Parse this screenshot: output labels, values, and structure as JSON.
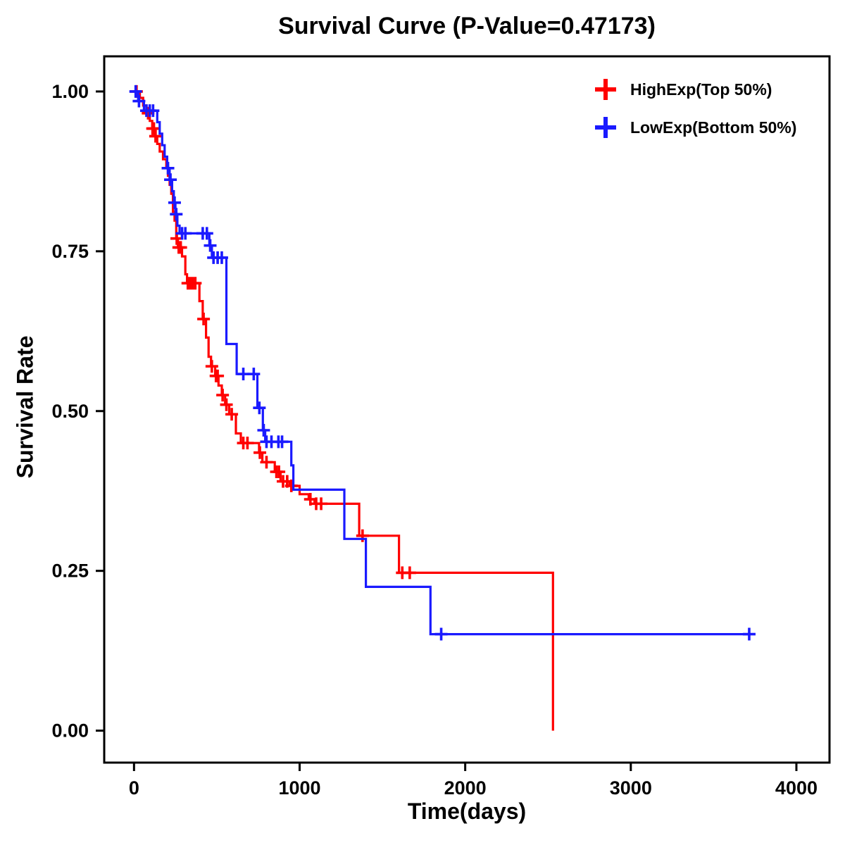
{
  "chart": {
    "title": "Survival Curve (P-Value=0.47173)",
    "xlabel": "Time(days)",
    "ylabel": "Survival Rate"
  },
  "chart_data": {
    "type": "line",
    "subtype": "kaplan-meier-step-survival",
    "title": "Survival Curve (P-Value=0.47173)",
    "p_value": 0.47173,
    "xlabel": "Time(days)",
    "ylabel": "Survival Rate",
    "xlim": [
      -180,
      4200
    ],
    "ylim": [
      -0.05,
      1.055
    ],
    "xticks": [
      0,
      1000,
      2000,
      3000,
      4000
    ],
    "xtick_labels": [
      "0",
      "1000",
      "2000",
      "3000",
      "4000"
    ],
    "yticks": [
      0.0,
      0.25,
      0.5,
      0.75,
      1.0
    ],
    "ytick_labels": [
      "0.00",
      "0.25",
      "0.50",
      "0.75",
      "1.00"
    ],
    "grid": false,
    "legend_position": "top-right-inside",
    "series": [
      {
        "name": "HighExp(Top 50%)",
        "color": "#FF0000",
        "steps": [
          [
            0,
            1.0
          ],
          [
            35,
            0.99
          ],
          [
            55,
            0.978
          ],
          [
            75,
            0.966
          ],
          [
            95,
            0.954
          ],
          [
            110,
            0.942
          ],
          [
            125,
            0.93
          ],
          [
            140,
            0.918
          ],
          [
            155,
            0.906
          ],
          [
            175,
            0.894
          ],
          [
            195,
            0.882
          ],
          [
            205,
            0.868
          ],
          [
            215,
            0.854
          ],
          [
            225,
            0.84
          ],
          [
            235,
            0.812
          ],
          [
            245,
            0.798
          ],
          [
            255,
            0.77
          ],
          [
            265,
            0.756
          ],
          [
            290,
            0.742
          ],
          [
            310,
            0.714
          ],
          [
            320,
            0.7
          ],
          [
            395,
            0.672
          ],
          [
            415,
            0.644
          ],
          [
            435,
            0.615
          ],
          [
            450,
            0.585
          ],
          [
            465,
            0.57
          ],
          [
            490,
            0.555
          ],
          [
            510,
            0.54
          ],
          [
            530,
            0.525
          ],
          [
            550,
            0.51
          ],
          [
            575,
            0.495
          ],
          [
            615,
            0.465
          ],
          [
            645,
            0.45
          ],
          [
            755,
            0.435
          ],
          [
            775,
            0.42
          ],
          [
            850,
            0.405
          ],
          [
            885,
            0.39
          ],
          [
            940,
            0.383
          ],
          [
            1000,
            0.37
          ],
          [
            1055,
            0.362
          ],
          [
            1090,
            0.355
          ],
          [
            1360,
            0.305
          ],
          [
            1600,
            0.247
          ],
          [
            2530,
            0.0
          ]
        ],
        "censor_marks": [
          [
            15,
            1.0
          ],
          [
            85,
            0.966
          ],
          [
            112,
            0.942
          ],
          [
            120,
            0.942
          ],
          [
            130,
            0.93
          ],
          [
            258,
            0.77
          ],
          [
            270,
            0.756
          ],
          [
            282,
            0.756
          ],
          [
            325,
            0.7
          ],
          [
            340,
            0.7
          ],
          [
            355,
            0.7
          ],
          [
            370,
            0.7
          ],
          [
            420,
            0.644
          ],
          [
            470,
            0.57
          ],
          [
            495,
            0.555
          ],
          [
            505,
            0.555
          ],
          [
            535,
            0.525
          ],
          [
            558,
            0.51
          ],
          [
            590,
            0.495
          ],
          [
            660,
            0.45
          ],
          [
            685,
            0.45
          ],
          [
            760,
            0.435
          ],
          [
            800,
            0.42
          ],
          [
            860,
            0.405
          ],
          [
            875,
            0.405
          ],
          [
            900,
            0.39
          ],
          [
            925,
            0.39
          ],
          [
            950,
            0.383
          ],
          [
            1065,
            0.362
          ],
          [
            1100,
            0.355
          ],
          [
            1130,
            0.355
          ],
          [
            1380,
            0.305
          ],
          [
            1620,
            0.247
          ],
          [
            1665,
            0.247
          ]
        ]
      },
      {
        "name": "LowExp(Bottom 50%)",
        "color": "#1A1AFF",
        "steps": [
          [
            0,
            1.0
          ],
          [
            25,
            0.985
          ],
          [
            60,
            0.97
          ],
          [
            140,
            0.952
          ],
          [
            155,
            0.934
          ],
          [
            170,
            0.916
          ],
          [
            185,
            0.898
          ],
          [
            200,
            0.88
          ],
          [
            215,
            0.862
          ],
          [
            230,
            0.844
          ],
          [
            240,
            0.826
          ],
          [
            250,
            0.808
          ],
          [
            262,
            0.79
          ],
          [
            275,
            0.778
          ],
          [
            455,
            0.759
          ],
          [
            470,
            0.74
          ],
          [
            558,
            0.605
          ],
          [
            620,
            0.558
          ],
          [
            745,
            0.505
          ],
          [
            778,
            0.47
          ],
          [
            792,
            0.452
          ],
          [
            950,
            0.415
          ],
          [
            962,
            0.377
          ],
          [
            1270,
            0.3
          ],
          [
            1400,
            0.225
          ],
          [
            1790,
            0.151
          ],
          [
            3720,
            0.151
          ]
        ],
        "censor_marks": [
          [
            10,
            1.0
          ],
          [
            30,
            0.985
          ],
          [
            75,
            0.97
          ],
          [
            95,
            0.97
          ],
          [
            115,
            0.97
          ],
          [
            205,
            0.88
          ],
          [
            220,
            0.862
          ],
          [
            245,
            0.826
          ],
          [
            255,
            0.808
          ],
          [
            290,
            0.778
          ],
          [
            310,
            0.778
          ],
          [
            415,
            0.778
          ],
          [
            440,
            0.778
          ],
          [
            460,
            0.759
          ],
          [
            480,
            0.74
          ],
          [
            505,
            0.74
          ],
          [
            530,
            0.74
          ],
          [
            660,
            0.558
          ],
          [
            723,
            0.558
          ],
          [
            757,
            0.505
          ],
          [
            783,
            0.47
          ],
          [
            800,
            0.452
          ],
          [
            830,
            0.452
          ],
          [
            872,
            0.452
          ],
          [
            894,
            0.452
          ],
          [
            1855,
            0.151
          ],
          [
            3715,
            0.151
          ]
        ]
      }
    ]
  }
}
